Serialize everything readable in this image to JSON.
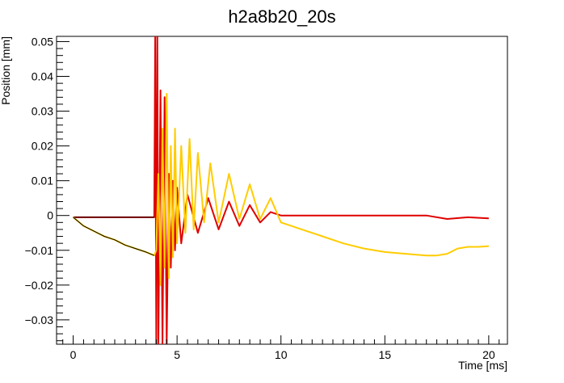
{
  "chart_data": {
    "type": "line",
    "title": "h2a8b20_20s",
    "xlabel": "Time [ms]",
    "ylabel": "Position [mm]",
    "xlim": [
      -0.8,
      20.9
    ],
    "ylim": [
      -0.037,
      0.0515
    ],
    "x_ticks": [
      0,
      5,
      10,
      15,
      20
    ],
    "x_tick_labels": [
      "0",
      "5",
      "10",
      "15",
      "20"
    ],
    "y_ticks": [
      -0.03,
      -0.02,
      -0.01,
      0,
      0.01,
      0.02,
      0.03,
      0.04,
      0.05
    ],
    "y_tick_labels": [
      "−0.03",
      "−0.02",
      "−0.01",
      "0",
      "0.01",
      "0.02",
      "0.03",
      "0.04",
      "0.05"
    ],
    "grid": false,
    "series": [
      {
        "color": "#e00000",
        "x": [
          0,
          1,
          2,
          3,
          3.9,
          3.95,
          4.0,
          4.05,
          4.1,
          4.2,
          4.3,
          4.4,
          4.5,
          4.6,
          4.7,
          4.8,
          4.9,
          5.0,
          5.2,
          5.5,
          6.0,
          6.5,
          7.0,
          7.5,
          8.0,
          8.5,
          9.0,
          9.5,
          10.0,
          11,
          12,
          13,
          14,
          15,
          16,
          17,
          18,
          19,
          20
        ],
        "y": [
          -0.0005,
          -0.0005,
          -0.0005,
          -0.0005,
          -0.0005,
          0.052,
          -0.037,
          0.052,
          -0.037,
          0.036,
          -0.037,
          0.034,
          -0.037,
          0.012,
          -0.015,
          0.01,
          -0.01,
          0.008,
          -0.008,
          0.006,
          -0.005,
          0.005,
          -0.004,
          0.004,
          -0.003,
          0.003,
          -0.002,
          0.001,
          0.0,
          0.0,
          0.0,
          0.0,
          0.0,
          0.0,
          0.0,
          0.0,
          -0.001,
          -0.0005,
          -0.0008
        ]
      },
      {
        "color": "#000000",
        "x": [
          0,
          1,
          2,
          3,
          3.9
        ],
        "y": [
          -0.0005,
          -0.0005,
          -0.0005,
          -0.0005,
          -0.0005
        ]
      },
      {
        "color": "#ffcc00",
        "x": [
          0,
          0.5,
          1,
          1.5,
          2,
          2.5,
          3,
          3.5,
          3.9,
          4.0,
          4.1,
          4.2,
          4.3,
          4.4,
          4.5,
          4.6,
          4.7,
          4.8,
          4.9,
          5.0,
          5.2,
          5.4,
          5.6,
          5.8,
          6.0,
          6.3,
          6.6,
          7.0,
          7.5,
          8.0,
          8.5,
          9.0,
          9.5,
          10.0,
          10.5,
          11.0,
          11.5,
          12.0,
          13,
          14,
          15,
          16,
          17,
          17.5,
          18,
          18.5,
          19,
          19.5,
          20
        ],
        "y": [
          -0.0005,
          -0.003,
          -0.0045,
          -0.006,
          -0.007,
          -0.0085,
          -0.0095,
          -0.0105,
          -0.0115,
          -0.01,
          0.012,
          -0.02,
          0.025,
          -0.015,
          0.035,
          -0.018,
          0.02,
          -0.012,
          0.025,
          -0.008,
          0.02,
          -0.005,
          0.022,
          -0.004,
          0.018,
          -0.002,
          0.015,
          -0.002,
          0.012,
          -0.001,
          0.009,
          -0.001,
          0.005,
          -0.002,
          -0.003,
          -0.004,
          -0.005,
          -0.006,
          -0.008,
          -0.0095,
          -0.0105,
          -0.011,
          -0.0115,
          -0.0115,
          -0.011,
          -0.0095,
          -0.009,
          -0.009,
          -0.0088
        ]
      },
      {
        "color": "#000000",
        "x": [
          0,
          0.5,
          1,
          1.5,
          2,
          2.5,
          3,
          3.5,
          3.9
        ],
        "y": [
          -0.0005,
          -0.003,
          -0.0045,
          -0.006,
          -0.007,
          -0.0085,
          -0.0095,
          -0.0105,
          -0.0115
        ]
      }
    ]
  }
}
